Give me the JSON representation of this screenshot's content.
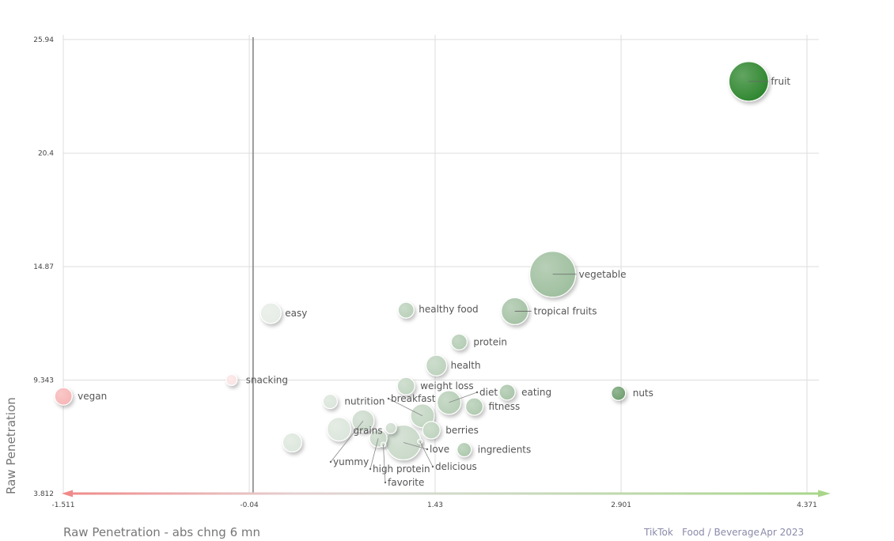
{
  "chart_data": {
    "type": "scatter",
    "xlabel": "Raw Penetration - abs chng 6 mn",
    "ylabel": "Raw Penetration",
    "xlim": [
      -1.511,
      4.371
    ],
    "ylim": [
      3.812,
      25.94
    ],
    "x_ticks": [
      {
        "v": -1.511,
        "label": "-1.511"
      },
      {
        "v": -0.04,
        "label": "-0.04"
      },
      {
        "v": 1.43,
        "label": "1.43"
      },
      {
        "v": 2.901,
        "label": "2.901"
      },
      {
        "v": 4.371,
        "label": "4.371"
      }
    ],
    "y_ticks": [
      {
        "v": 3.812,
        "label": "3.812"
      },
      {
        "v": 9.343,
        "label": "9.343"
      },
      {
        "v": 14.87,
        "label": "14.87"
      },
      {
        "v": 20.4,
        "label": "20.4"
      },
      {
        "v": 25.94,
        "label": "25.94"
      }
    ],
    "zero_line_x": -0.01,
    "grid": true,
    "points": [
      {
        "name": "fruit",
        "x": 3.91,
        "y": 23.9,
        "size": 25,
        "color": "#2e862e"
      },
      {
        "name": "vegetable",
        "x": 2.36,
        "y": 14.5,
        "size": 29,
        "color": "#9fbf9f"
      },
      {
        "name": "tropical fruits",
        "x": 2.06,
        "y": 12.7,
        "size": 17,
        "color": "#a5c2a5"
      },
      {
        "name": "healthy food",
        "x": 1.2,
        "y": 12.75,
        "size": 10,
        "color": "#b9d0b9"
      },
      {
        "name": "easy",
        "x": 0.13,
        "y": 12.6,
        "size": 13,
        "color": "#e6ece6"
      },
      {
        "name": "protein",
        "x": 1.62,
        "y": 11.2,
        "size": 10,
        "color": "#b3ccb3"
      },
      {
        "name": "health",
        "x": 1.44,
        "y": 10.05,
        "size": 13,
        "color": "#bdd2bd"
      },
      {
        "name": "snacking",
        "x": -0.18,
        "y": 9.35,
        "size": 7,
        "color": "#fbe3e3"
      },
      {
        "name": "vegan",
        "x": -1.51,
        "y": 8.55,
        "size": 11,
        "color": "#f7b6b6"
      },
      {
        "name": "weight loss",
        "x": 1.2,
        "y": 9.05,
        "size": 11,
        "color": "#c2d5c2"
      },
      {
        "name": "eating",
        "x": 2.0,
        "y": 8.75,
        "size": 10,
        "color": "#a9c5a9"
      },
      {
        "name": "nuts",
        "x": 2.88,
        "y": 8.7,
        "size": 9,
        "color": "#6f9f6f"
      },
      {
        "name": "diet",
        "x": 1.54,
        "y": 8.25,
        "size": 15,
        "color": "#b6ceb6"
      },
      {
        "name": "fitness",
        "x": 1.74,
        "y": 8.05,
        "size": 11,
        "color": "#b0cab0"
      },
      {
        "name": "nutrition",
        "x": 0.6,
        "y": 8.3,
        "size": 9,
        "color": "#dae5da"
      },
      {
        "name": "breakfast",
        "x": 1.33,
        "y": 7.6,
        "size": 15,
        "color": "#c2d5c2"
      },
      {
        "name": "yummy",
        "x": 0.86,
        "y": 7.35,
        "size": 14,
        "color": "#cbdacb"
      },
      {
        "name": "grains",
        "x": 0.67,
        "y": 6.95,
        "size": 15,
        "color": "#dce6dc"
      },
      {
        "name": "berries",
        "x": 1.4,
        "y": 6.9,
        "size": 11,
        "color": "#bed3be"
      },
      {
        "name": "",
        "x": 1.08,
        "y": 7.0,
        "size": 7,
        "color": "#cddbcd"
      },
      {
        "name": "high protein",
        "x": 0.98,
        "y": 6.5,
        "size": 11,
        "color": "#c8d8c8"
      },
      {
        "name": "love",
        "x": 1.18,
        "y": 6.3,
        "size": 22,
        "color": "#c9d9c9"
      },
      {
        "name": "ingredients",
        "x": 1.66,
        "y": 5.95,
        "size": 9,
        "color": "#adc8ad"
      },
      {
        "name": "delicious",
        "x": 1.31,
        "y": 6.35,
        "size": 3,
        "color": "#c8d8c8"
      },
      {
        "name": "favorite",
        "x": 1.02,
        "y": 6.2,
        "size": 3,
        "color": "#c8d8c8"
      },
      {
        "name": "",
        "x": 0.3,
        "y": 6.3,
        "size": 12,
        "color": "#dde7dd"
      }
    ]
  },
  "footer": {
    "source": "TikTok",
    "category": "Food / Beverage",
    "period": "Apr 2023"
  }
}
